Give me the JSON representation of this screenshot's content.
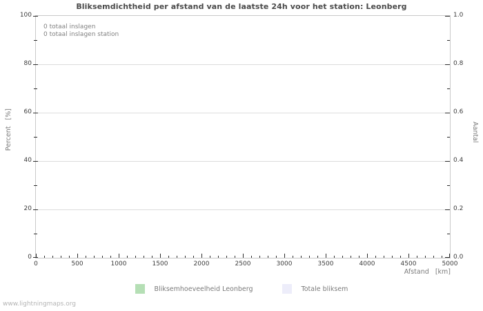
{
  "title": "Bliksemdichtheid per afstand van de laatste 24h voor het station: Leonberg",
  "annotations": {
    "line1": "0 totaal inslagen",
    "line2": "0 totaal inslagen station"
  },
  "watermark": "www.lightningmaps.org",
  "chart_data": {
    "type": "bar",
    "title": "Bliksemdichtheid per afstand van de laatste 24h voor het station: Leonberg",
    "xlabel": "Afstand   [km]",
    "ylabel_left": "Percent   [%]",
    "ylabel_right": "Aantal",
    "xlim": [
      0,
      5000
    ],
    "ylim_left": [
      0,
      100
    ],
    "ylim_right": [
      0.0,
      1.0
    ],
    "x_major_ticks": [
      0,
      500,
      1000,
      1500,
      2000,
      2500,
      3000,
      3500,
      4000,
      4500,
      5000
    ],
    "x_minor_step": 100,
    "y_left_major_ticks": [
      0,
      20,
      40,
      60,
      80,
      100
    ],
    "y_left_minor_step": 10,
    "y_right_major_tick_labels": [
      "0.0",
      "0.2",
      "0.4",
      "0.6",
      "0.8",
      "1.0"
    ],
    "y_right_minor_step": 0.1,
    "grid": "horizontal major gridlines only",
    "legend_position": "bottom-center",
    "series": [
      {
        "name": "Bliksemhoeveelheid Leonberg",
        "color": "#b5dfb5",
        "values": []
      },
      {
        "name": "Totale bliksem",
        "color": "#ededfa",
        "values": []
      }
    ]
  }
}
